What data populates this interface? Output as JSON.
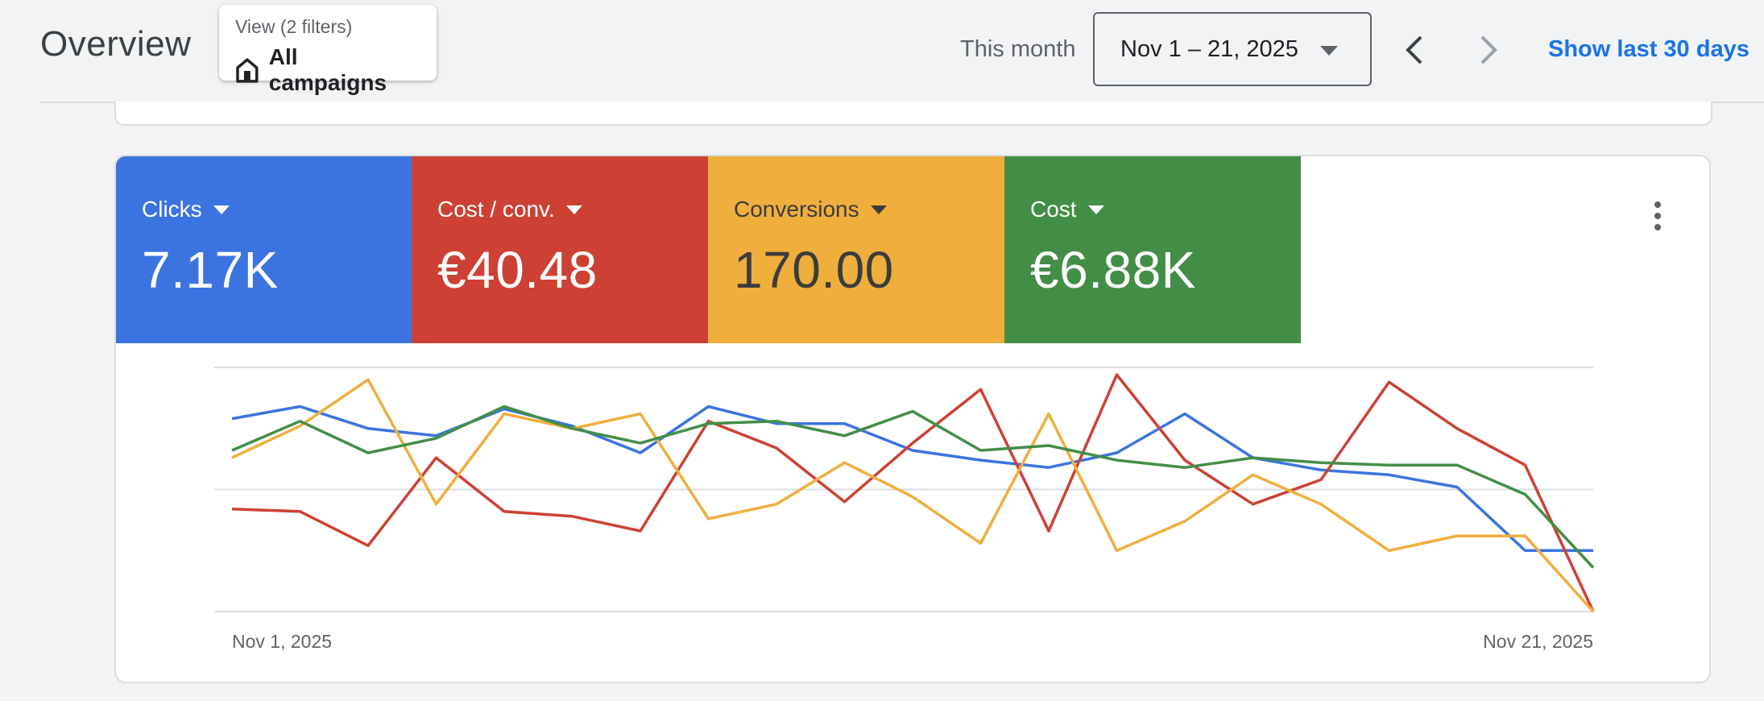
{
  "header": {
    "title": "Overview",
    "view_filter": {
      "subtitle": "View (2 filters)",
      "label": "All campaigns",
      "icon": "building-icon"
    },
    "period_label": "This month",
    "date_range": "Nov 1 – 21, 2025",
    "show_last_30": "Show last 30 days"
  },
  "scorecards": [
    {
      "label": "Clicks",
      "value": "7.17K",
      "color": "#3b74e0",
      "text_color": "#ffffff"
    },
    {
      "label": "Cost / conv.",
      "value": "€40.48",
      "color": "#cc4133",
      "text_color": "#ffffff"
    },
    {
      "label": "Conversions",
      "value": "170.00",
      "color": "#f0ae3d",
      "text_color": "#3c3c3c"
    },
    {
      "label": "Cost",
      "value": "€6.88K",
      "color": "#438e47",
      "text_color": "#ffffff"
    }
  ],
  "chart_data": {
    "type": "line",
    "x": [
      "Nov 1, 2025",
      "Nov 2, 2025",
      "Nov 3, 2025",
      "Nov 4, 2025",
      "Nov 5, 2025",
      "Nov 6, 2025",
      "Nov 7, 2025",
      "Nov 8, 2025",
      "Nov 9, 2025",
      "Nov 10, 2025",
      "Nov 11, 2025",
      "Nov 12, 2025",
      "Nov 13, 2025",
      "Nov 14, 2025",
      "Nov 15, 2025",
      "Nov 16, 2025",
      "Nov 17, 2025",
      "Nov 18, 2025",
      "Nov 19, 2025",
      "Nov 20, 2025",
      "Nov 21, 2025"
    ],
    "x_tick_labels": [
      "Nov 1, 2025",
      "Nov 21, 2025"
    ],
    "y_scale": "relative 0–1 per metric",
    "series": [
      {
        "name": "Clicks",
        "color": "#3b74e0",
        "values": [
          0.79,
          0.84,
          0.75,
          0.72,
          0.83,
          0.76,
          0.65,
          0.84,
          0.77,
          0.77,
          0.66,
          0.62,
          0.59,
          0.65,
          0.81,
          0.63,
          0.58,
          0.56,
          0.51,
          0.25,
          0.25
        ]
      },
      {
        "name": "Cost / conv.",
        "color": "#cc4133",
        "values": [
          0.42,
          0.41,
          0.27,
          0.63,
          0.41,
          0.39,
          0.33,
          0.78,
          0.67,
          0.45,
          0.69,
          0.91,
          0.33,
          0.97,
          0.62,
          0.44,
          0.54,
          0.94,
          0.75,
          0.6,
          0.0
        ]
      },
      {
        "name": "Conversions",
        "color": "#f0ae3d",
        "values": [
          0.63,
          0.76,
          0.95,
          0.44,
          0.81,
          0.75,
          0.81,
          0.38,
          0.44,
          0.61,
          0.47,
          0.28,
          0.81,
          0.25,
          0.37,
          0.56,
          0.44,
          0.25,
          0.31,
          0.31,
          0.0
        ]
      },
      {
        "name": "Cost",
        "color": "#438e47",
        "values": [
          0.66,
          0.78,
          0.65,
          0.71,
          0.84,
          0.75,
          0.69,
          0.77,
          0.78,
          0.72,
          0.82,
          0.66,
          0.68,
          0.62,
          0.59,
          0.63,
          0.61,
          0.6,
          0.6,
          0.48,
          0.18
        ]
      }
    ]
  }
}
